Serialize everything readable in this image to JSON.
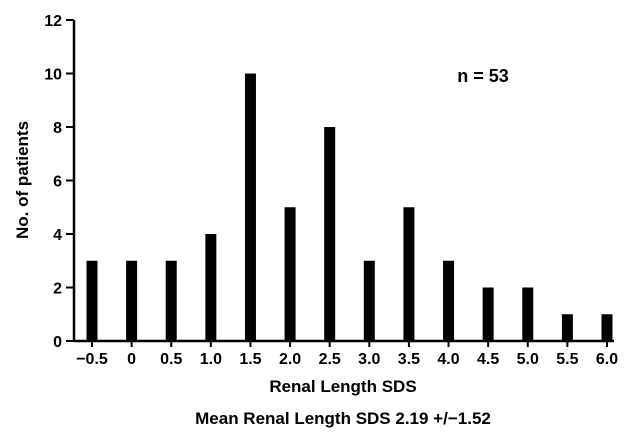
{
  "chart_data": {
    "type": "bar",
    "categories": [
      "−0.5",
      "0",
      "0.5",
      "1.0",
      "1.5",
      "2.0",
      "2.5",
      "3.0",
      "3.5",
      "4.0",
      "4.5",
      "5.0",
      "5.5",
      "6.0"
    ],
    "values": [
      3,
      3,
      3,
      4,
      10,
      5,
      8,
      3,
      5,
      3,
      2,
      2,
      1,
      1
    ],
    "ylabel": "No. of patients",
    "xlabel": "Renal Length SDS",
    "subtitle": "Mean Renal Length SDS 2.19 +/−1.52",
    "annotation": "n = 53",
    "ylim": [
      0,
      12
    ],
    "yticks": [
      0,
      2,
      4,
      6,
      8,
      10,
      12
    ],
    "grid": false,
    "bar_color": "#000000"
  }
}
